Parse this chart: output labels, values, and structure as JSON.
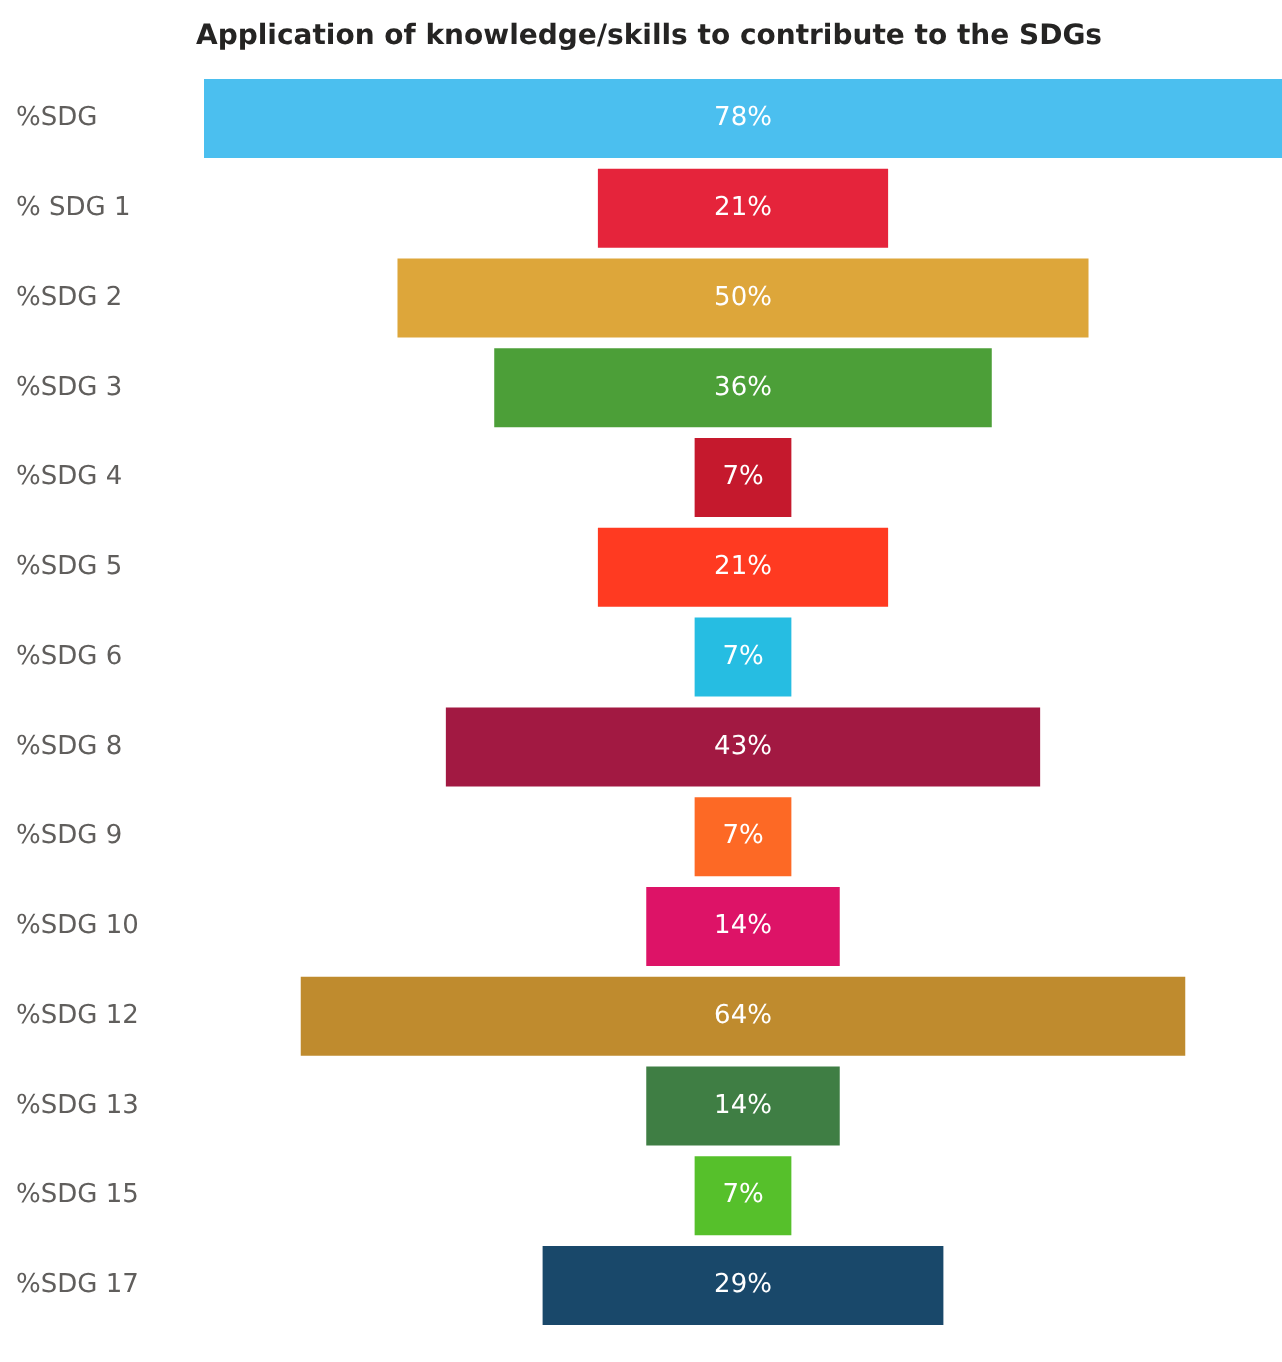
{
  "chart_data": {
    "type": "other",
    "title": "Application of knowledge/skills to contribute to the SDGs",
    "categories": [
      "%SDG",
      "% SDG 1",
      "%SDG 2",
      "%SDG 3",
      "%SDG 4",
      "%SDG 5",
      "%SDG 6",
      "%SDG 8",
      "%SDG 9",
      "%SDG 10",
      "%SDG 12",
      "%SDG 13",
      "%SDG 15",
      "%SDG 17"
    ],
    "values": [
      78,
      21,
      50,
      36,
      7,
      21,
      7,
      43,
      7,
      14,
      64,
      14,
      7,
      29
    ],
    "value_labels": [
      "78%",
      "21%",
      "50%",
      "36%",
      "7%",
      "21%",
      "7%",
      "43%",
      "7%",
      "14%",
      "64%",
      "14%",
      "7%",
      "29%"
    ],
    "colors": [
      "#4bbfef",
      "#e5243b",
      "#dda63a",
      "#4c9f38",
      "#c5192d",
      "#ff3a21",
      "#26bde2",
      "#a21942",
      "#fd6925",
      "#dd1367",
      "#bf8b2e",
      "#3f7e44",
      "#56c02b",
      "#19486a"
    ],
    "legend": false
  }
}
